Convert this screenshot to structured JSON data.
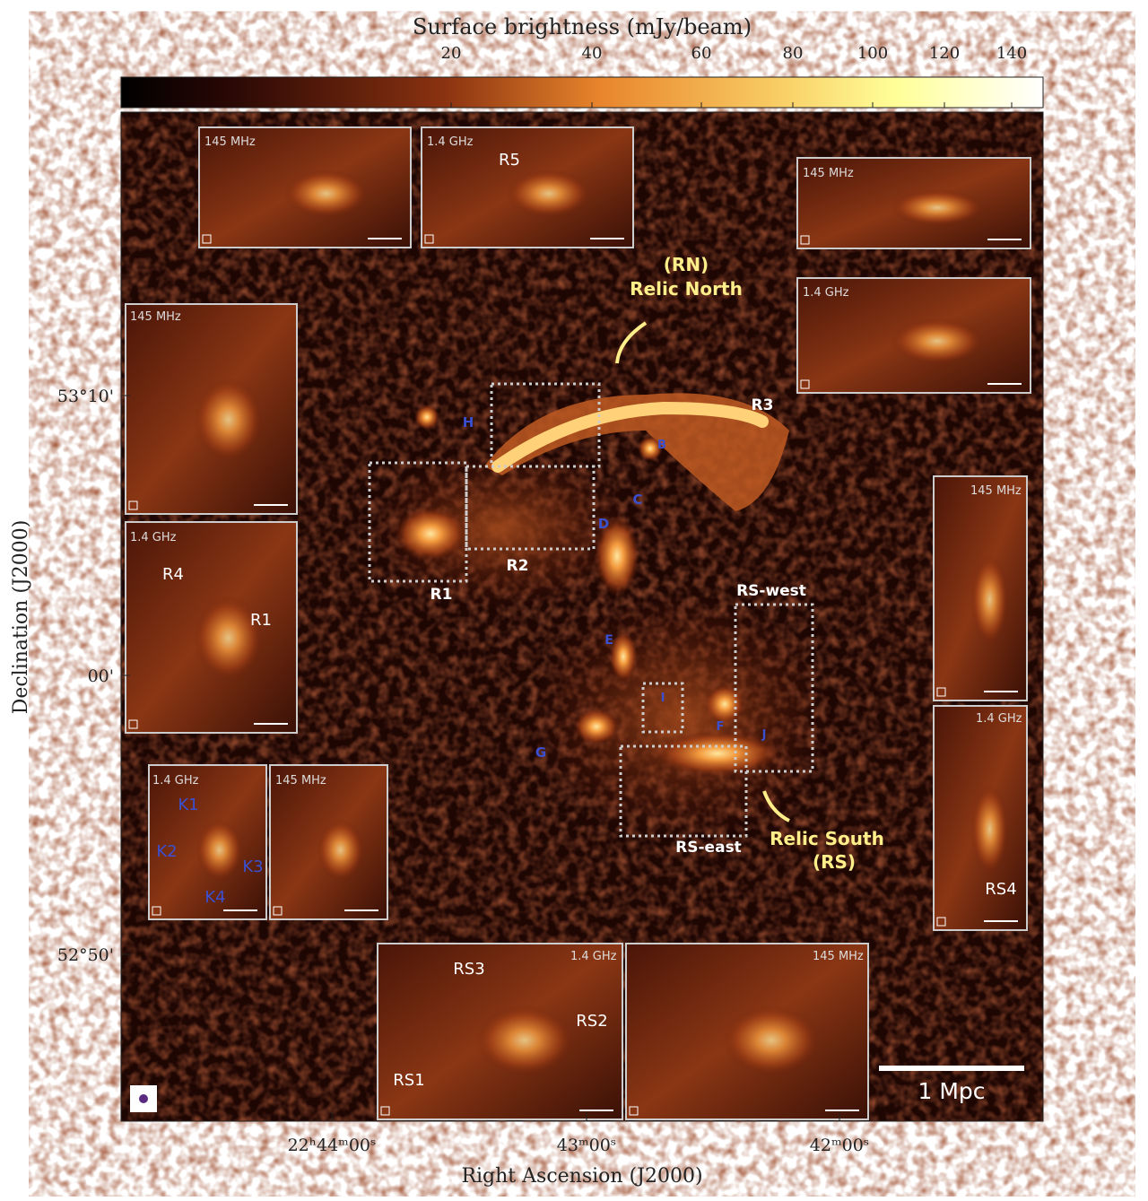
{
  "colorbar": {
    "label": "Surface brightness (mJy/beam)",
    "ticks": [
      20,
      40,
      60,
      80,
      100,
      120,
      140
    ]
  },
  "axes": {
    "x_label": "Right Ascension (J2000)",
    "x_ticks": [
      "22ʰ44ᵐ00ˢ",
      "43ᵐ00ˢ",
      "42ᵐ00ˢ"
    ],
    "y_label": "Declination (J2000)",
    "y_ticks": [
      "53°10'",
      "00'",
      "52°50'"
    ]
  },
  "annotations": [
    "(RN)",
    "Relic North",
    "R3",
    "H",
    "B",
    "C",
    "D",
    "R1",
    "R2",
    "RS-west",
    "E",
    "I",
    "F",
    "J",
    "G",
    "RS-east",
    "Relic South",
    "(RS)"
  ],
  "inset_frequencies": [
    "145 MHz",
    "1.4 GHz",
    "145 MHz",
    "1.4 GHz",
    "145 MHz",
    "1.4 GHz",
    "145 MHz",
    "1.4 GHz",
    "1.4 GHz",
    "145 MHz",
    "1.4 GHz",
    "145 MHz"
  ],
  "inset_labels": [
    "R5",
    "R4",
    "R1",
    "K1",
    "K2",
    "K3",
    "K4",
    "RS3",
    "RS2",
    "RS1",
    "RS4"
  ],
  "scale_bar": "1 Mpc"
}
